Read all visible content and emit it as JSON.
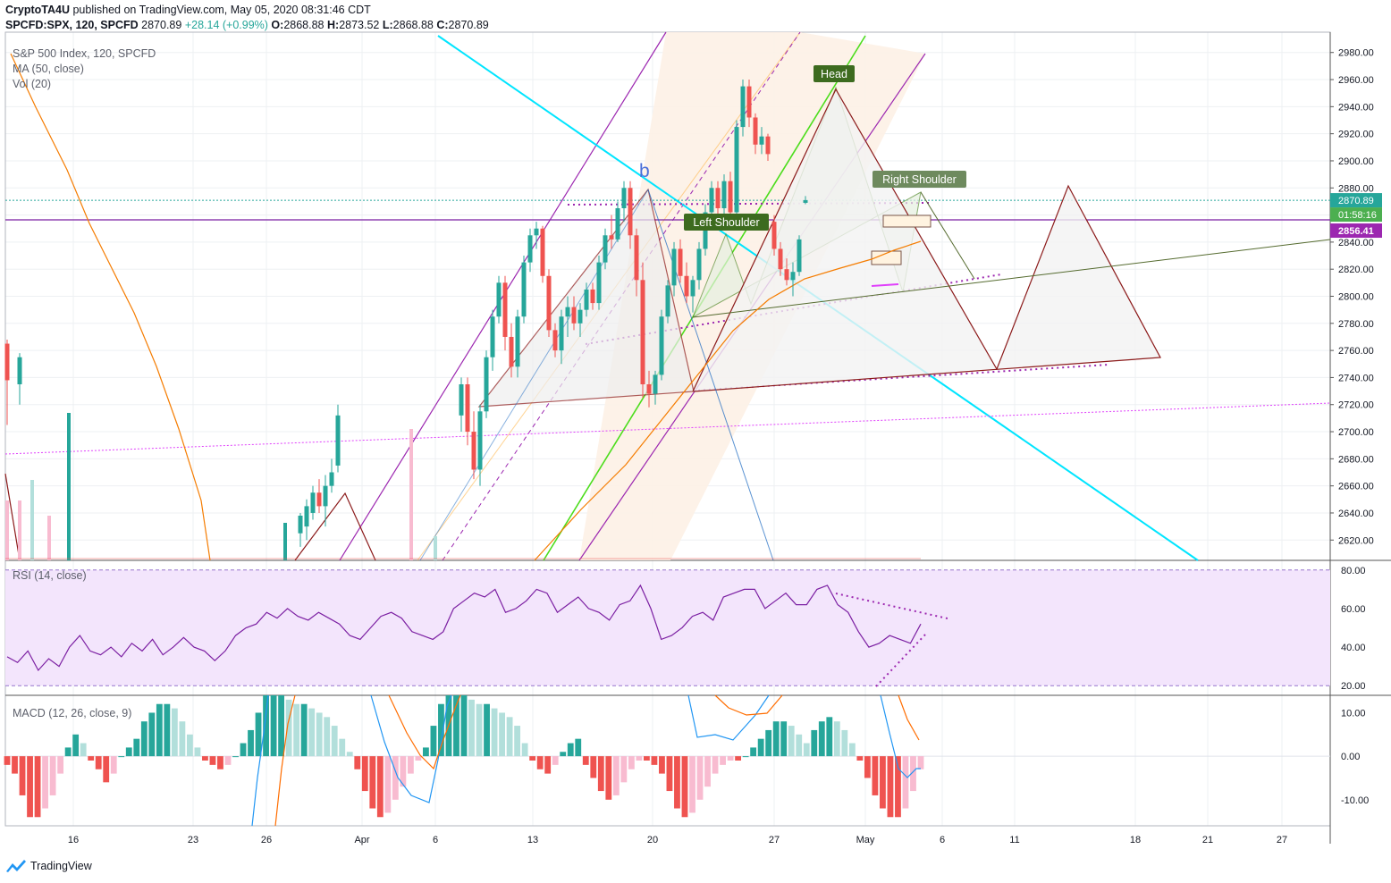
{
  "header": {
    "author": "CryptoTA4U",
    "published_text": "published on TradingView.com, May 05, 2020 08:31:46 CDT",
    "symbol": "SPCFD:SPX, 120, SPCFD",
    "last": "2870.89",
    "change": "+28.14 (+0.99%)",
    "o_label": "O:",
    "o": "2868.88",
    "h_label": "H:",
    "h": "2873.52",
    "l_label": "L:",
    "l": "2868.88",
    "c_label": "C:",
    "c": "2870.89"
  },
  "legend": {
    "title": "S&P 500 Index, 120, SPCFD",
    "ma": "MA (50, close)",
    "vol": "Vol (20)",
    "rsi": "RSI (14, close)",
    "macd": "MACD (12, 26, close, 9)"
  },
  "annotations": {
    "head": "Head",
    "left_shoulder": "Left Shoulder",
    "right_shoulder": "Right Shoulder",
    "wave": "b"
  },
  "price_axis": {
    "ticks": [
      "2980.00",
      "2960.00",
      "2940.00",
      "2920.00",
      "2900.00",
      "2880.00",
      "2860.00",
      "2840.00",
      "2820.00",
      "2800.00",
      "2780.00",
      "2760.00",
      "2740.00",
      "2720.00",
      "2700.00",
      "2680.00",
      "2660.00",
      "2640.00",
      "2620.00"
    ],
    "last_price": "2870.89",
    "countdown": "01:58:16",
    "level": "2856.41"
  },
  "rsi_axis": {
    "ticks": [
      "80.00",
      "60.00",
      "40.00",
      "20.00"
    ]
  },
  "macd_axis": {
    "ticks": [
      "10.00",
      "0.00",
      "-10.00"
    ]
  },
  "time_axis": {
    "labels": [
      "16",
      "23",
      "26",
      "Apr",
      "6",
      "13",
      "20",
      "27",
      "May",
      "6",
      "11",
      "18",
      "21",
      "27"
    ]
  },
  "footer": {
    "brand": "TradingView"
  },
  "colors": {
    "up": "#26a69a",
    "down": "#ef5350",
    "up_light": "#b2dfdb",
    "down_light": "#f8bbd0",
    "ma": "#f57c00",
    "channel": "#9c27b0",
    "cyan": "#00e5ff",
    "green": "#4cdd1c",
    "pattern": "#8b1a1a",
    "rsi": "#7b1fa2",
    "macd_line": "#2196f3",
    "signal_line": "#ff6d00",
    "level": "#7b1fa2",
    "last": "#26a69a"
  },
  "chart_data": [
    {
      "type": "candlestick",
      "title": "S&P 500 Index, 120, SPCFD",
      "ylim": [
        2605,
        2995
      ],
      "series": [
        {
          "name": "SPX",
          "ohlc": [
            [
              2765,
              2768,
              2705,
              2738
            ],
            [
              2735,
              2758,
              2720,
              2755
            ],
            [
              2625,
              2640,
              2615,
              2638
            ],
            [
              2630,
              2650,
              2620,
              2645
            ],
            [
              2640,
              2660,
              2635,
              2655
            ],
            [
              2655,
              2665,
              2640,
              2645
            ],
            [
              2645,
              2668,
              2630,
              2660
            ],
            [
              2660,
              2680,
              2655,
              2670
            ],
            [
              2675,
              2720,
              2670,
              2712
            ],
            [
              2712,
              2740,
              2700,
              2735
            ],
            [
              2735,
              2740,
              2690,
              2700
            ],
            [
              2700,
              2715,
              2665,
              2672
            ],
            [
              2672,
              2720,
              2660,
              2715
            ],
            [
              2715,
              2760,
              2710,
              2755
            ],
            [
              2755,
              2790,
              2745,
              2785
            ],
            [
              2785,
              2815,
              2780,
              2810
            ],
            [
              2810,
              2815,
              2760,
              2770
            ],
            [
              2770,
              2780,
              2740,
              2748
            ],
            [
              2748,
              2790,
              2740,
              2785
            ],
            [
              2785,
              2830,
              2780,
              2825
            ],
            [
              2825,
              2850,
              2818,
              2845
            ],
            [
              2845,
              2855,
              2835,
              2850
            ],
            [
              2850,
              2852,
              2810,
              2815
            ],
            [
              2815,
              2820,
              2770,
              2775
            ],
            [
              2775,
              2780,
              2755,
              2760
            ],
            [
              2760,
              2790,
              2750,
              2785
            ],
            [
              2785,
              2800,
              2770,
              2792
            ],
            [
              2792,
              2800,
              2775,
              2780
            ],
            [
              2780,
              2795,
              2770,
              2790
            ],
            [
              2790,
              2810,
              2785,
              2805
            ],
            [
              2805,
              2810,
              2790,
              2795
            ],
            [
              2795,
              2830,
              2790,
              2825
            ],
            [
              2825,
              2850,
              2820,
              2845
            ],
            [
              2845,
              2860,
              2835,
              2842
            ],
            [
              2842,
              2870,
              2840,
              2865
            ],
            [
              2865,
              2885,
              2855,
              2880
            ],
            [
              2880,
              2885,
              2835,
              2845
            ],
            [
              2845,
              2850,
              2800,
              2812
            ],
            [
              2812,
              2825,
              2725,
              2735
            ],
            [
              2735,
              2745,
              2718,
              2728
            ],
            [
              2728,
              2745,
              2720,
              2742
            ],
            [
              2742,
              2790,
              2738,
              2785
            ],
            [
              2785,
              2812,
              2780,
              2808
            ],
            [
              2808,
              2840,
              2800,
              2835
            ],
            [
              2835,
              2842,
              2810,
              2815
            ],
            [
              2815,
              2825,
              2795,
              2800
            ],
            [
              2800,
              2815,
              2788,
              2812
            ],
            [
              2812,
              2840,
              2805,
              2835
            ],
            [
              2835,
              2868,
              2830,
              2862
            ],
            [
              2862,
              2885,
              2855,
              2880
            ],
            [
              2880,
              2885,
              2860,
              2865
            ],
            [
              2865,
              2890,
              2860,
              2885
            ],
            [
              2885,
              2892,
              2858,
              2862
            ],
            [
              2862,
              2930,
              2860,
              2925
            ],
            [
              2925,
              2960,
              2918,
              2955
            ],
            [
              2955,
              2960,
              2925,
              2932
            ],
            [
              2932,
              2935,
              2905,
              2912
            ],
            [
              2912,
              2925,
              2905,
              2918
            ],
            [
              2918,
              2920,
              2900,
              2905
            ],
            [
              2855,
              2860,
              2830,
              2835
            ],
            [
              2835,
              2840,
              2815,
              2820
            ],
            [
              2820,
              2828,
              2808,
              2812
            ],
            [
              2812,
              2825,
              2800,
              2818
            ],
            [
              2818,
              2845,
              2815,
              2842
            ],
            [
              2869,
              2874,
              2868,
              2871
            ]
          ]
        }
      ],
      "moving_average": {
        "name": "MA (50, close)"
      }
    },
    {
      "type": "line",
      "title": "RSI (14, close)",
      "ylim": [
        15,
        85
      ],
      "bands": [
        20,
        80
      ],
      "series": [
        {
          "name": "RSI",
          "values": [
            35,
            32,
            38,
            28,
            34,
            30,
            40,
            46,
            38,
            36,
            40,
            35,
            42,
            38,
            44,
            36,
            40,
            45,
            40,
            38,
            33,
            38,
            46,
            50,
            52,
            58,
            55,
            60,
            56,
            54,
            58,
            55,
            52,
            46,
            44,
            50,
            56,
            58,
            55,
            48,
            46,
            44,
            48,
            60,
            64,
            68,
            66,
            70,
            58,
            60,
            64,
            70,
            68,
            58,
            62,
            66,
            60,
            58,
            54,
            62,
            64,
            72,
            60,
            44,
            46,
            50,
            56,
            58,
            54,
            66,
            68,
            70,
            70,
            60,
            64,
            68,
            62,
            62,
            70,
            72,
            62,
            58,
            48,
            40,
            42,
            46,
            44,
            42,
            52
          ]
        }
      ]
    },
    {
      "type": "bar",
      "title": "MACD (12, 26, close, 9)",
      "ylim": [
        -16,
        14
      ],
      "series": [
        {
          "name": "histogram",
          "values": [
            -2,
            -4,
            -9,
            -14,
            -14,
            -12,
            -9,
            -4,
            2,
            5,
            3,
            -1,
            -3,
            -6,
            -4,
            0,
            2,
            4,
            8,
            10,
            12,
            12,
            11,
            8,
            5,
            2,
            -1,
            -2,
            -3,
            -2,
            0,
            3,
            6,
            10,
            14,
            14,
            14,
            13,
            12,
            12,
            11,
            10,
            9,
            7,
            4,
            1,
            -3,
            -8,
            -12,
            -14,
            -13,
            -10,
            -7,
            -4,
            -1,
            2,
            7,
            12,
            14,
            14,
            14,
            13,
            12,
            12,
            11,
            10,
            9,
            7,
            3,
            -1,
            -3,
            -4,
            -2,
            1,
            3,
            4,
            -2,
            -5,
            -8,
            -10,
            -9,
            -6,
            -3,
            -1,
            -1,
            -2,
            -4,
            -8,
            -12,
            -14,
            -13,
            -10,
            -7,
            -4,
            -2,
            -1,
            -1,
            0,
            2,
            4,
            6,
            8,
            8,
            7,
            5,
            3,
            6,
            8,
            9,
            8,
            6,
            3,
            -1,
            -5,
            -9,
            -12,
            -14,
            -14,
            -12,
            -8,
            -3
          ]
        }
      ]
    }
  ]
}
